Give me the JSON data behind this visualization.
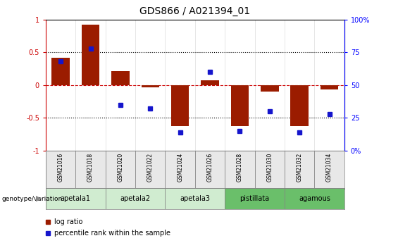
{
  "title": "GDS866 / A021394_01",
  "samples": [
    "GSM21016",
    "GSM21018",
    "GSM21020",
    "GSM21022",
    "GSM21024",
    "GSM21026",
    "GSM21028",
    "GSM21030",
    "GSM21032",
    "GSM21034"
  ],
  "log_ratios": [
    0.42,
    0.92,
    0.21,
    -0.03,
    -0.62,
    0.07,
    -0.63,
    -0.1,
    -0.62,
    -0.07
  ],
  "percentile_ranks": [
    68,
    78,
    35,
    32,
    14,
    60,
    15,
    30,
    14,
    28
  ],
  "bar_color": "#9B1C00",
  "dot_color": "#1515CC",
  "groups": [
    {
      "name": "apetala1",
      "start": 0,
      "end": 2,
      "color": "#d0ecd0"
    },
    {
      "name": "apetala2",
      "start": 2,
      "end": 4,
      "color": "#d0ecd0"
    },
    {
      "name": "apetala3",
      "start": 4,
      "end": 6,
      "color": "#d0ecd0"
    },
    {
      "name": "pistillata",
      "start": 6,
      "end": 8,
      "color": "#6abf6a"
    },
    {
      "name": "agamous",
      "start": 8,
      "end": 10,
      "color": "#6abf6a"
    }
  ],
  "ylim": [
    -1,
    1
  ],
  "legend_log_ratio": "log ratio",
  "legend_percentile": "percentile rank within the sample",
  "genotype_label": "genotype/variation",
  "bar_width": 0.6,
  "dot_size": 5
}
